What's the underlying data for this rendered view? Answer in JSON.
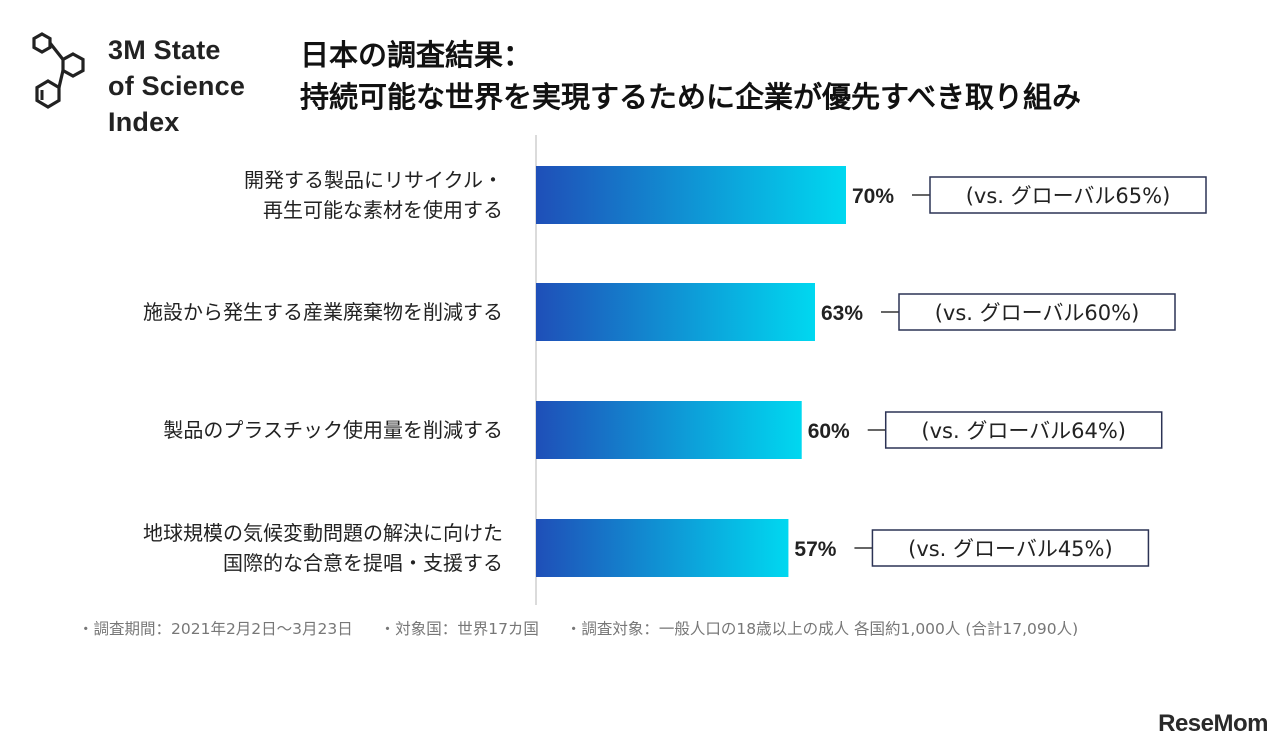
{
  "brand": {
    "lines": [
      "3M State",
      "of Science",
      "Index"
    ]
  },
  "title": {
    "line1": "日本の調査結果：",
    "line2": "持続可能な世界を実現するために企業が優先すべき取り組み"
  },
  "chart_data": {
    "type": "bar",
    "orientation": "horizontal",
    "unit": "%",
    "categories": [
      [
        "開発する製品にリサイクル・",
        "再生可能な素材を使用する"
      ],
      [
        "施設から発生する産業廃棄物を削減する"
      ],
      [
        "製品のプラスチック使用量を削減する"
      ],
      [
        "地球規模の気候変動問題の解決に向けた",
        "国際的な合意を提唱・支援する"
      ]
    ],
    "values": [
      70,
      63,
      60,
      57
    ],
    "value_labels": [
      "70%",
      "63%",
      "60%",
      "57%"
    ],
    "comparison_labels": [
      "(vs. グローバル65%)",
      "(vs. グローバル60%)",
      "(vs. グローバル64%)",
      "(vs. グローバル45%)"
    ],
    "comparison_values": [
      65,
      60,
      64,
      45
    ],
    "xlim": [
      0,
      100
    ],
    "bar_gradient": [
      "#1f4fb8",
      "#00d8f0"
    ],
    "grid": false
  },
  "footnote": {
    "period": "・調査期間：2021年2月2日〜3月23日",
    "countries": "・対象国：世界17カ国",
    "target": "・調査対象：一般人口の18歳以上の成人 各国約1,000人 (合計17,090人)"
  },
  "watermark": "ReseMom"
}
